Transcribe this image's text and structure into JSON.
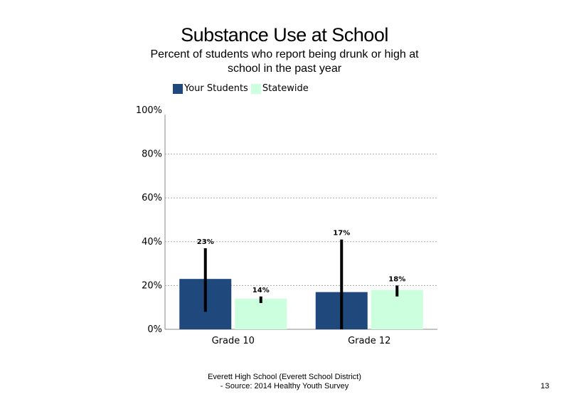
{
  "chart_data": {
    "type": "bar",
    "title": "Substance Use at School",
    "subtitle": "Percent of students  who report being drunk or high at school in the past year",
    "categories": [
      "Grade 10",
      "Grade 12"
    ],
    "series": [
      {
        "name": "Your Students",
        "color": "#1f497d",
        "values": [
          23,
          17
        ],
        "labels": [
          "23%",
          "17%"
        ],
        "error_low": [
          8,
          0
        ],
        "error_high": [
          37,
          41
        ]
      },
      {
        "name": "Statewide",
        "color": "#ccffdd",
        "values": [
          14,
          18
        ],
        "labels": [
          "14%",
          "18%"
        ],
        "error_low": [
          12,
          15
        ],
        "error_high": [
          15,
          20
        ]
      }
    ],
    "ylim": [
      0,
      100
    ],
    "yticks": [
      0,
      20,
      40,
      60,
      80,
      100
    ],
    "ytick_labels": [
      "0%",
      "20%",
      "40%",
      "60%",
      "80%",
      "100%"
    ],
    "grid": true,
    "legend_position": "top-left"
  },
  "footer": {
    "line1": "Everett High  School  (Everett School District)",
    "line2": "- Source: 2014 Healthy  Youth Survey"
  },
  "page_number": "13"
}
